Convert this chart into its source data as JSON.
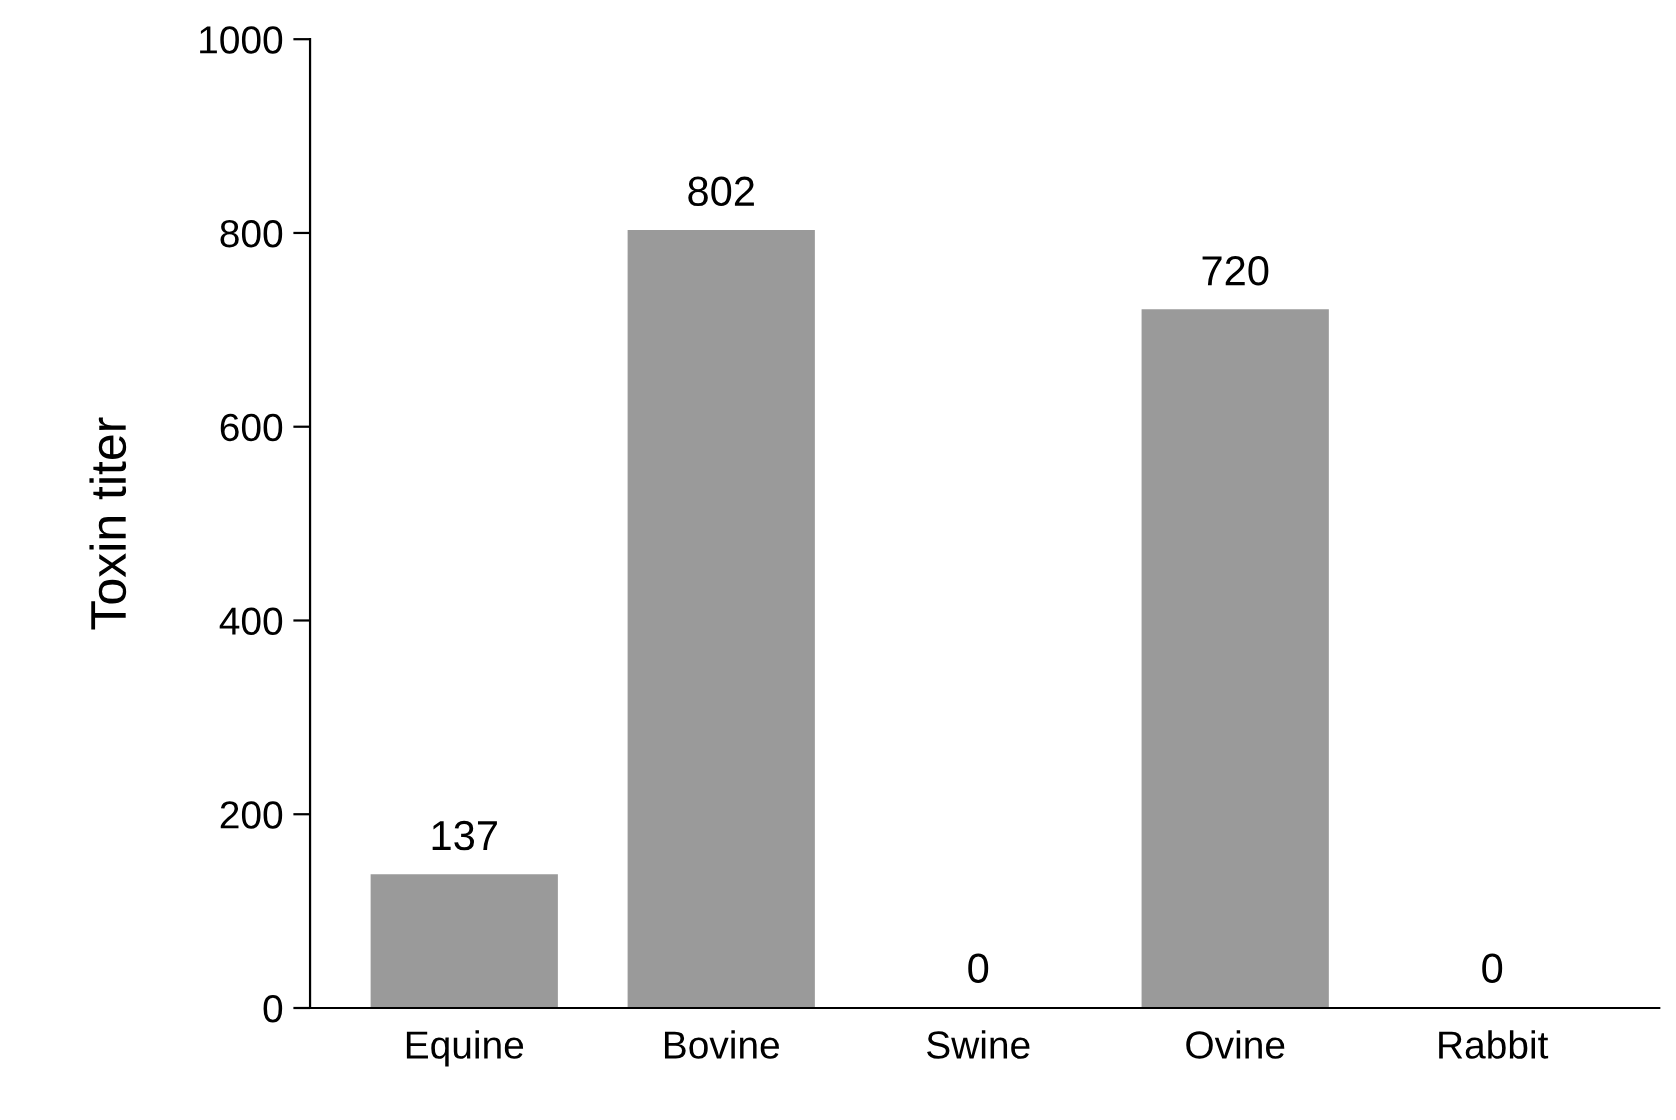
{
  "chart_data": {
    "type": "bar",
    "ylabel": "Toxin titer",
    "categories": [
      "Equine",
      "Bovine",
      "Swine",
      "Ovine",
      "Rabbit"
    ],
    "values": [
      137,
      802,
      0,
      720,
      0
    ],
    "color": "#9a9a9a",
    "ylim": [
      0,
      1000
    ],
    "yticks": [
      0,
      200,
      400,
      600,
      800,
      1000
    ],
    "data_labels": true,
    "grid": false,
    "legend": false
  }
}
